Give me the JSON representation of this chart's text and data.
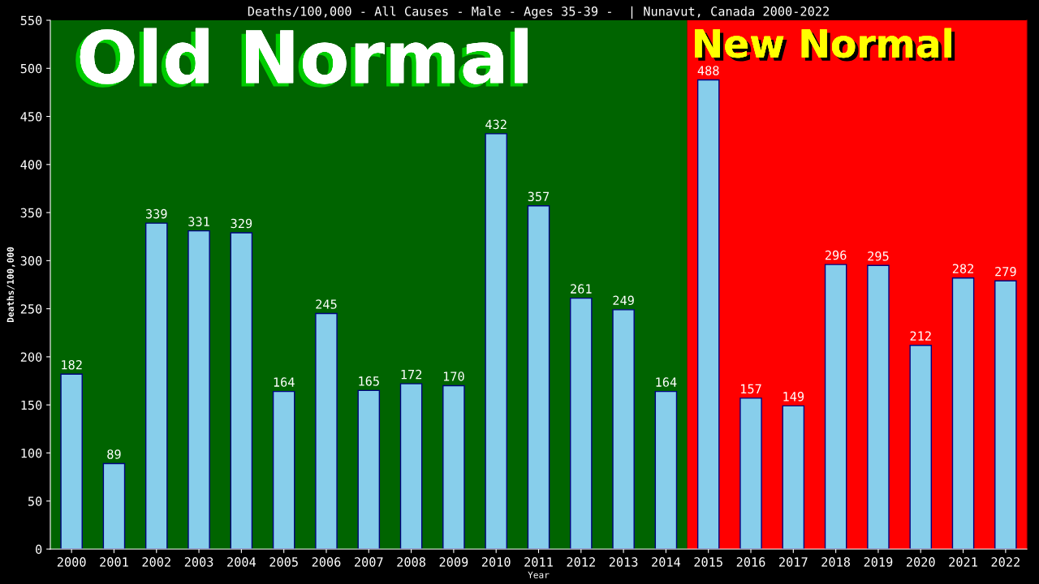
{
  "chart_data": {
    "type": "bar",
    "title": "Deaths/100,000 - All Causes - Male - Ages 35-39 -  | Nunavut, Canada 2000-2022",
    "xlabel": "Year",
    "ylabel": "Deaths/100,000",
    "categories": [
      "2000",
      "2001",
      "2002",
      "2003",
      "2004",
      "2005",
      "2006",
      "2007",
      "2008",
      "2009",
      "2010",
      "2011",
      "2012",
      "2013",
      "2014",
      "2015",
      "2016",
      "2017",
      "2018",
      "2019",
      "2020",
      "2021",
      "2022"
    ],
    "values": [
      182,
      89,
      339,
      331,
      329,
      164,
      245,
      165,
      172,
      170,
      432,
      357,
      261,
      249,
      164,
      488,
      157,
      149,
      296,
      295,
      212,
      282,
      279
    ],
    "color": "#87ceeb",
    "ylim": [
      0,
      550
    ],
    "yticks": [
      0,
      50,
      100,
      150,
      200,
      250,
      300,
      350,
      400,
      450,
      500,
      550
    ],
    "grid": false,
    "data_labels": true,
    "bands": [
      {
        "axis": "x",
        "from": "2000",
        "to": "2014",
        "label": "Old Normal",
        "color": "#006400"
      },
      {
        "axis": "x",
        "from": "2015",
        "to": "2022",
        "label": "New Normal",
        "color": "#ff0000"
      }
    ]
  }
}
